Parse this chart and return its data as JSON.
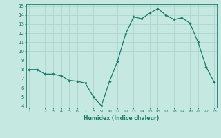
{
  "x": [
    0,
    1,
    2,
    3,
    4,
    5,
    6,
    7,
    8,
    9,
    10,
    11,
    12,
    13,
    14,
    15,
    16,
    17,
    18,
    19,
    20,
    21,
    22,
    23
  ],
  "y": [
    8.0,
    8.0,
    7.5,
    7.5,
    7.3,
    6.8,
    6.7,
    6.5,
    5.0,
    4.0,
    6.7,
    8.9,
    11.9,
    13.8,
    13.6,
    14.2,
    14.7,
    14.0,
    13.5,
    13.7,
    13.1,
    11.0,
    8.3,
    6.6
  ],
  "xlim": [
    -0.3,
    23.3
  ],
  "ylim": [
    3.8,
    15.2
  ],
  "xticks": [
    0,
    2,
    3,
    4,
    5,
    6,
    7,
    8,
    9,
    10,
    11,
    12,
    13,
    14,
    15,
    16,
    17,
    18,
    19,
    20,
    21,
    22,
    23
  ],
  "yticks": [
    4,
    5,
    6,
    7,
    8,
    9,
    10,
    11,
    12,
    13,
    14,
    15
  ],
  "xlabel": "Humidex (Indice chaleur)",
  "line_color": "#1a7a6a",
  "marker": "D",
  "marker_size": 1.8,
  "bg_color": "#c5e8e0",
  "grid_color": "#aed4cc",
  "figsize": [
    3.2,
    2.0
  ],
  "dpi": 100
}
